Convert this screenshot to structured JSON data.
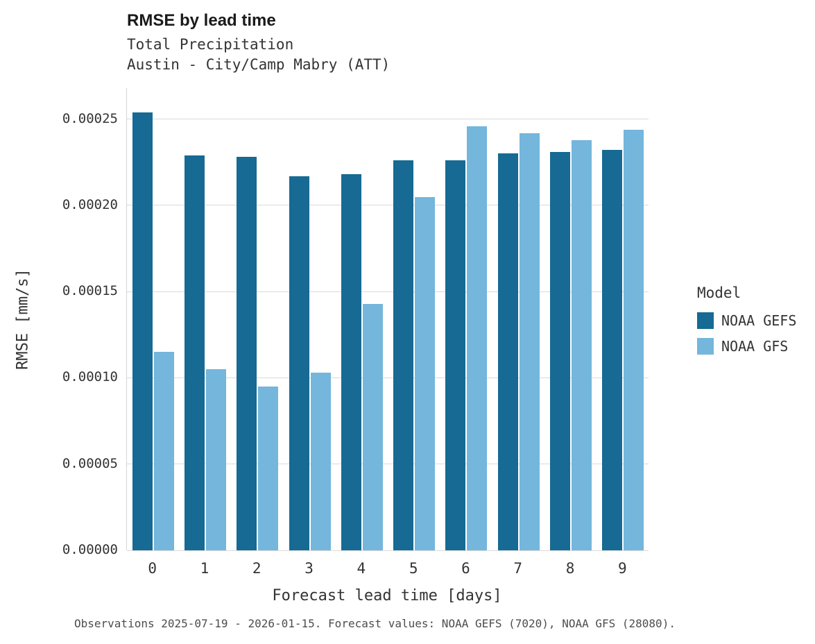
{
  "chart_data": {
    "type": "bar",
    "title": "RMSE by lead time",
    "subtitle1": "Total Precipitation",
    "subtitle2": "Austin - City/Camp Mabry (ATT)",
    "xlabel": "Forecast lead time [days]",
    "ylabel": "RMSE [mm/s]",
    "categories": [
      "0",
      "1",
      "2",
      "3",
      "4",
      "5",
      "6",
      "7",
      "8",
      "9"
    ],
    "series": [
      {
        "name": "NOAA GEFS",
        "color": "#166a93",
        "values": [
          0.000254,
          0.000229,
          0.000228,
          0.000217,
          0.000218,
          0.000226,
          0.000226,
          0.00023,
          0.000231,
          0.000232
        ]
      },
      {
        "name": "NOAA GFS",
        "color": "#74b6dc",
        "values": [
          0.000115,
          0.000105,
          9.5e-05,
          0.000103,
          0.000143,
          0.000205,
          0.000246,
          0.000242,
          0.000238,
          0.000244
        ]
      }
    ],
    "ylim": [
      0,
      0.000268
    ],
    "yticks": [
      0,
      5e-05,
      0.0001,
      0.00015,
      0.0002,
      0.00025
    ],
    "ytick_labels": [
      "0.00000",
      "0.00005",
      "0.00010",
      "0.00015",
      "0.00020",
      "0.00025"
    ],
    "grid": "horizontal-only",
    "legend": {
      "position": "right",
      "title": "Model"
    },
    "caption": "Observations 2025-07-19 - 2026-01-15. Forecast values: NOAA GEFS (7020), NOAA GFS (28080)."
  }
}
